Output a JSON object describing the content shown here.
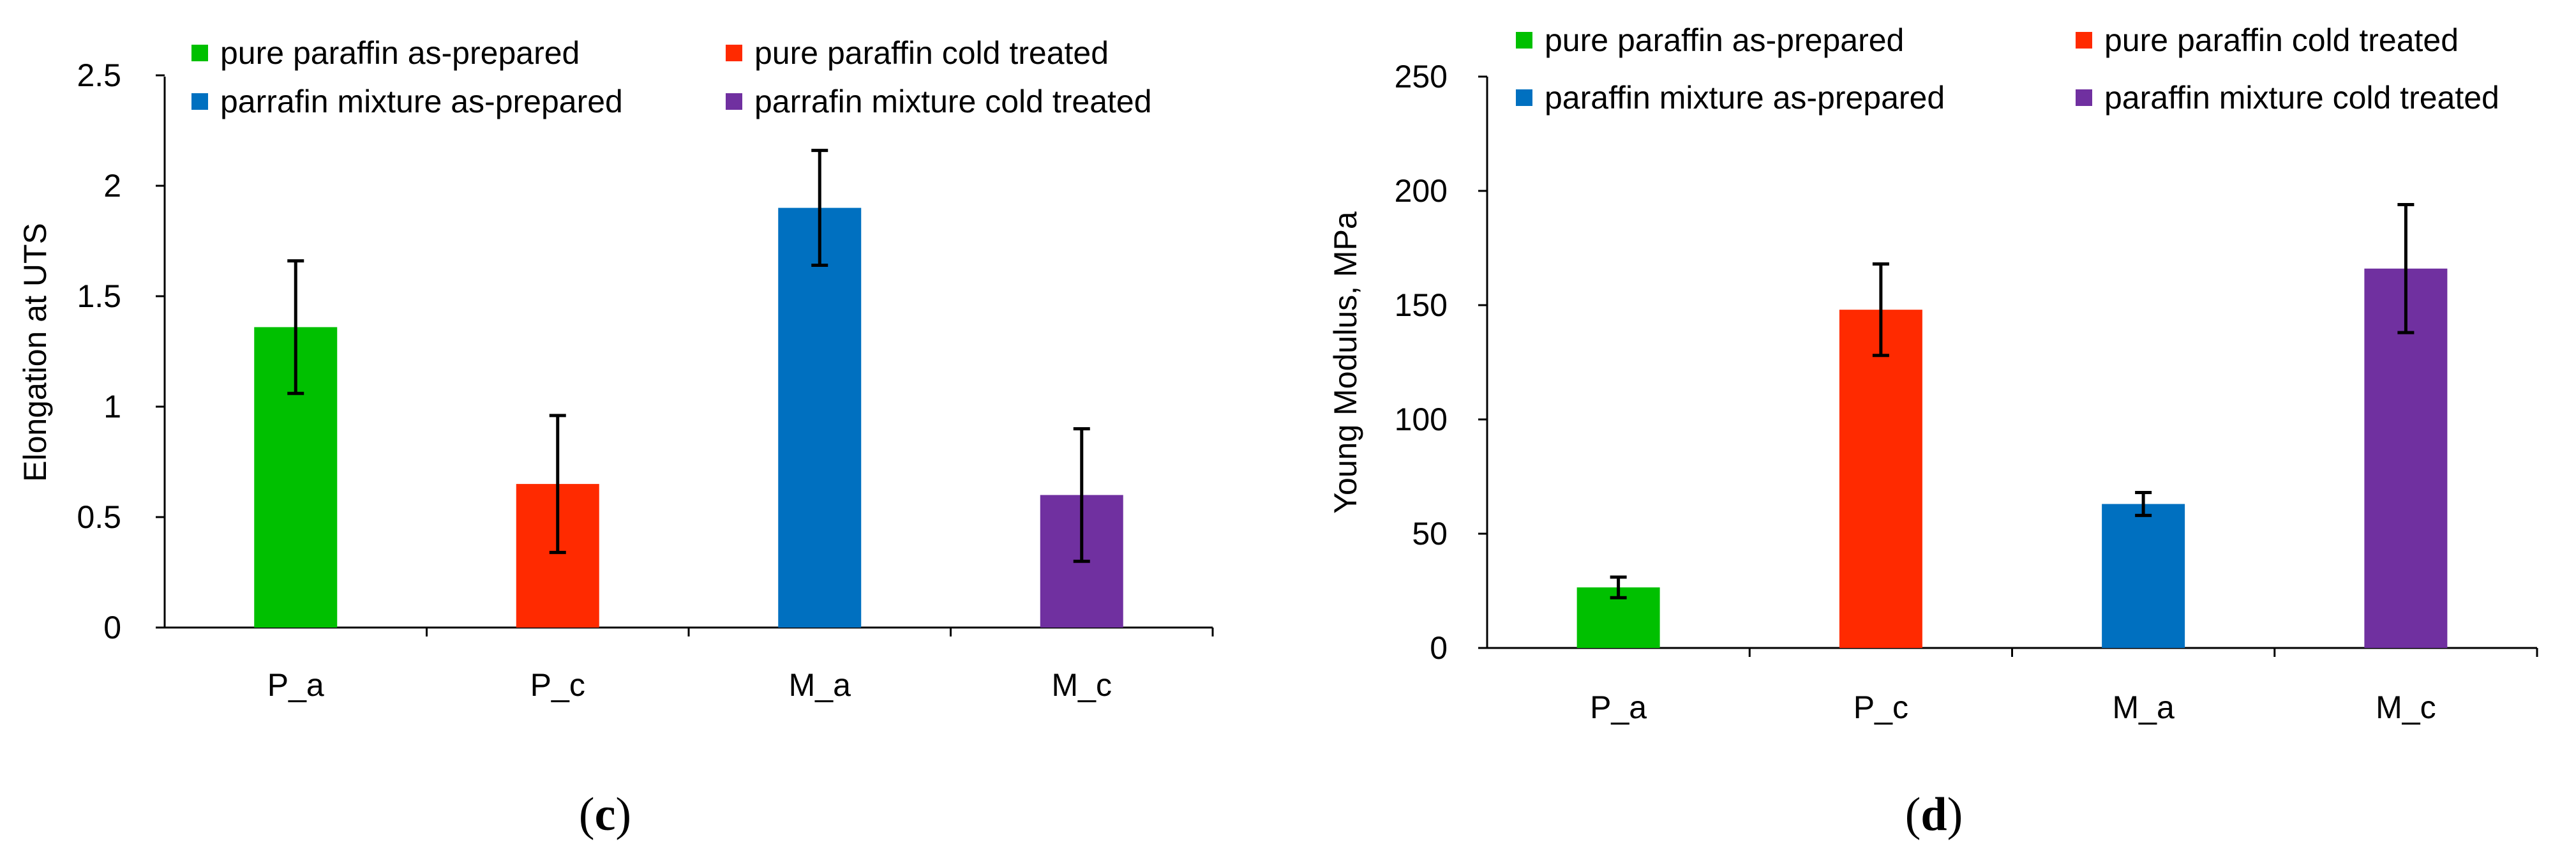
{
  "chart_data": [
    {
      "type": "bar",
      "panel_label": "(c)",
      "panel_letter": "c",
      "ylabel": "Elongation at UTS",
      "xlabel": "",
      "ylim": [
        0,
        2.5
      ],
      "yticks": [
        0,
        0.5,
        1,
        1.5,
        2,
        2.5
      ],
      "ytick_labels": [
        "0",
        "0.5",
        "1",
        "1.5",
        "2",
        "2.5"
      ],
      "categories": [
        "P_a",
        "P_c",
        "M_a",
        "M_c"
      ],
      "values": [
        1.36,
        0.65,
        1.9,
        0.6
      ],
      "errors": [
        0.3,
        0.31,
        0.26,
        0.3
      ],
      "colors": [
        "#00c000",
        "#ff2a00",
        "#0070c0",
        "#7030a0"
      ],
      "legend": [
        {
          "label": "pure paraffin as-prepared",
          "color": "#00c000"
        },
        {
          "label": "pure paraffin cold treated",
          "color": "#ff2a00"
        },
        {
          "label": "parrafin mixture as-prepared",
          "color": "#0070c0"
        },
        {
          "label": "parrafin mixture cold treated",
          "color": "#7030a0"
        }
      ]
    },
    {
      "type": "bar",
      "panel_label": "(d)",
      "panel_letter": "d",
      "ylabel": "Young Modulus, MPa",
      "xlabel": "",
      "ylim": [
        0,
        250
      ],
      "yticks": [
        0,
        50,
        100,
        150,
        200,
        250
      ],
      "ytick_labels": [
        "0",
        "50",
        "100",
        "150",
        "200",
        "250"
      ],
      "categories": [
        "P_a",
        "P_c",
        "M_a",
        "M_c"
      ],
      "values": [
        26.5,
        148,
        63,
        166
      ],
      "errors": [
        4.5,
        20,
        5,
        28
      ],
      "colors": [
        "#00c000",
        "#ff2a00",
        "#0070c0",
        "#7030a0"
      ],
      "legend": [
        {
          "label": "pure paraffin as-prepared",
          "color": "#00c000"
        },
        {
          "label": "pure paraffin cold treated",
          "color": "#ff2a00"
        },
        {
          "label": "paraffin mixture as-prepared",
          "color": "#0070c0"
        },
        {
          "label": "paraffin mixture cold treated",
          "color": "#7030a0"
        }
      ]
    }
  ]
}
